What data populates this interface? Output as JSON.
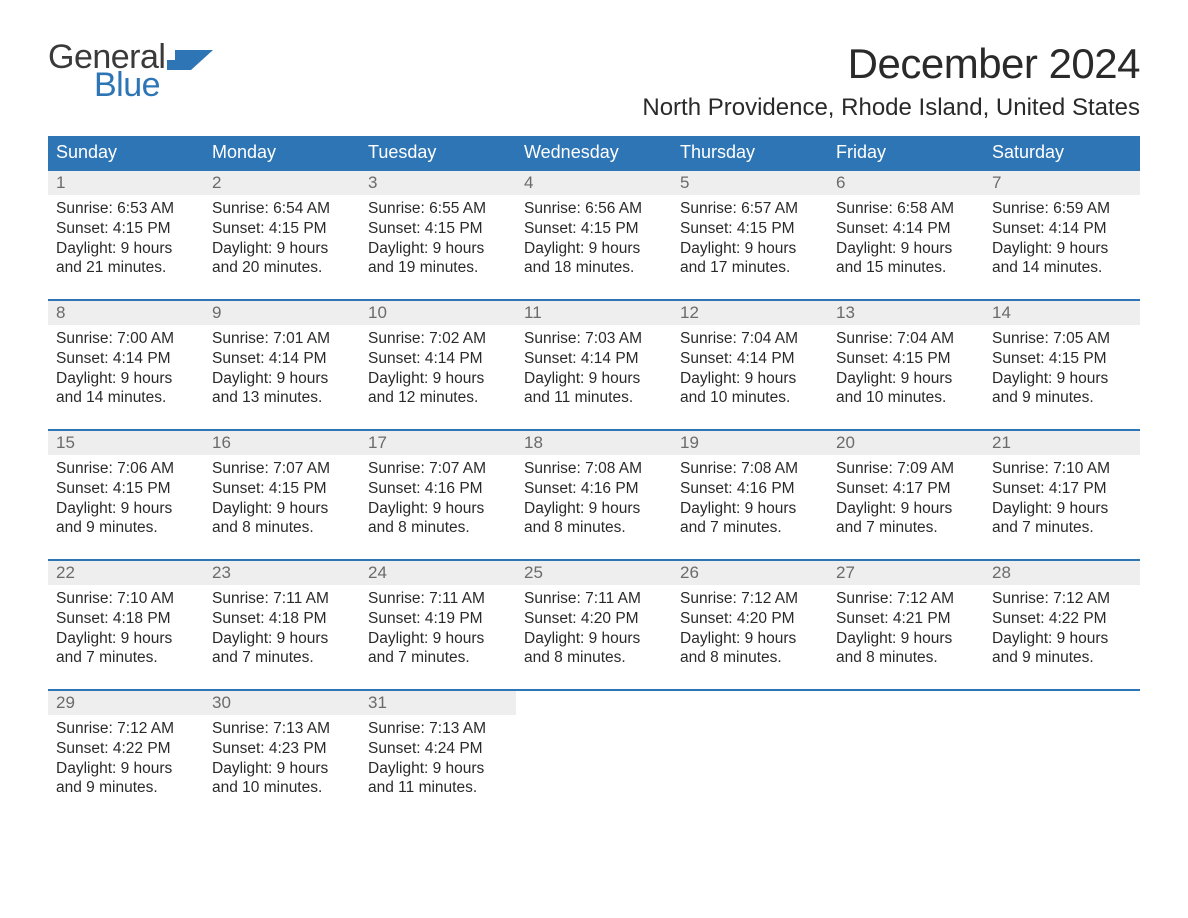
{
  "logo": {
    "text_top": "General",
    "text_bottom": "Blue",
    "top_color": "#3a3a3a",
    "bottom_color": "#2e75b6",
    "flag_color": "#2e75b6"
  },
  "title": "December 2024",
  "location": "North Providence, Rhode Island, United States",
  "colors": {
    "header_bg": "#2e75b6",
    "header_text": "#ffffff",
    "daynum_bg": "#eeeeee",
    "daynum_text": "#6b6b6b",
    "week_border": "#2e75b6",
    "body_text": "#2a2a2a",
    "page_bg": "#ffffff"
  },
  "weekdays": [
    "Sunday",
    "Monday",
    "Tuesday",
    "Wednesday",
    "Thursday",
    "Friday",
    "Saturday"
  ],
  "weeks": [
    [
      {
        "num": "1",
        "sunrise": "Sunrise: 6:53 AM",
        "sunset": "Sunset: 4:15 PM",
        "day1": "Daylight: 9 hours",
        "day2": "and 21 minutes."
      },
      {
        "num": "2",
        "sunrise": "Sunrise: 6:54 AM",
        "sunset": "Sunset: 4:15 PM",
        "day1": "Daylight: 9 hours",
        "day2": "and 20 minutes."
      },
      {
        "num": "3",
        "sunrise": "Sunrise: 6:55 AM",
        "sunset": "Sunset: 4:15 PM",
        "day1": "Daylight: 9 hours",
        "day2": "and 19 minutes."
      },
      {
        "num": "4",
        "sunrise": "Sunrise: 6:56 AM",
        "sunset": "Sunset: 4:15 PM",
        "day1": "Daylight: 9 hours",
        "day2": "and 18 minutes."
      },
      {
        "num": "5",
        "sunrise": "Sunrise: 6:57 AM",
        "sunset": "Sunset: 4:15 PM",
        "day1": "Daylight: 9 hours",
        "day2": "and 17 minutes."
      },
      {
        "num": "6",
        "sunrise": "Sunrise: 6:58 AM",
        "sunset": "Sunset: 4:14 PM",
        "day1": "Daylight: 9 hours",
        "day2": "and 15 minutes."
      },
      {
        "num": "7",
        "sunrise": "Sunrise: 6:59 AM",
        "sunset": "Sunset: 4:14 PM",
        "day1": "Daylight: 9 hours",
        "day2": "and 14 minutes."
      }
    ],
    [
      {
        "num": "8",
        "sunrise": "Sunrise: 7:00 AM",
        "sunset": "Sunset: 4:14 PM",
        "day1": "Daylight: 9 hours",
        "day2": "and 14 minutes."
      },
      {
        "num": "9",
        "sunrise": "Sunrise: 7:01 AM",
        "sunset": "Sunset: 4:14 PM",
        "day1": "Daylight: 9 hours",
        "day2": "and 13 minutes."
      },
      {
        "num": "10",
        "sunrise": "Sunrise: 7:02 AM",
        "sunset": "Sunset: 4:14 PM",
        "day1": "Daylight: 9 hours",
        "day2": "and 12 minutes."
      },
      {
        "num": "11",
        "sunrise": "Sunrise: 7:03 AM",
        "sunset": "Sunset: 4:14 PM",
        "day1": "Daylight: 9 hours",
        "day2": "and 11 minutes."
      },
      {
        "num": "12",
        "sunrise": "Sunrise: 7:04 AM",
        "sunset": "Sunset: 4:14 PM",
        "day1": "Daylight: 9 hours",
        "day2": "and 10 minutes."
      },
      {
        "num": "13",
        "sunrise": "Sunrise: 7:04 AM",
        "sunset": "Sunset: 4:15 PM",
        "day1": "Daylight: 9 hours",
        "day2": "and 10 minutes."
      },
      {
        "num": "14",
        "sunrise": "Sunrise: 7:05 AM",
        "sunset": "Sunset: 4:15 PM",
        "day1": "Daylight: 9 hours",
        "day2": "and 9 minutes."
      }
    ],
    [
      {
        "num": "15",
        "sunrise": "Sunrise: 7:06 AM",
        "sunset": "Sunset: 4:15 PM",
        "day1": "Daylight: 9 hours",
        "day2": "and 9 minutes."
      },
      {
        "num": "16",
        "sunrise": "Sunrise: 7:07 AM",
        "sunset": "Sunset: 4:15 PM",
        "day1": "Daylight: 9 hours",
        "day2": "and 8 minutes."
      },
      {
        "num": "17",
        "sunrise": "Sunrise: 7:07 AM",
        "sunset": "Sunset: 4:16 PM",
        "day1": "Daylight: 9 hours",
        "day2": "and 8 minutes."
      },
      {
        "num": "18",
        "sunrise": "Sunrise: 7:08 AM",
        "sunset": "Sunset: 4:16 PM",
        "day1": "Daylight: 9 hours",
        "day2": "and 8 minutes."
      },
      {
        "num": "19",
        "sunrise": "Sunrise: 7:08 AM",
        "sunset": "Sunset: 4:16 PM",
        "day1": "Daylight: 9 hours",
        "day2": "and 7 minutes."
      },
      {
        "num": "20",
        "sunrise": "Sunrise: 7:09 AM",
        "sunset": "Sunset: 4:17 PM",
        "day1": "Daylight: 9 hours",
        "day2": "and 7 minutes."
      },
      {
        "num": "21",
        "sunrise": "Sunrise: 7:10 AM",
        "sunset": "Sunset: 4:17 PM",
        "day1": "Daylight: 9 hours",
        "day2": "and 7 minutes."
      }
    ],
    [
      {
        "num": "22",
        "sunrise": "Sunrise: 7:10 AM",
        "sunset": "Sunset: 4:18 PM",
        "day1": "Daylight: 9 hours",
        "day2": "and 7 minutes."
      },
      {
        "num": "23",
        "sunrise": "Sunrise: 7:11 AM",
        "sunset": "Sunset: 4:18 PM",
        "day1": "Daylight: 9 hours",
        "day2": "and 7 minutes."
      },
      {
        "num": "24",
        "sunrise": "Sunrise: 7:11 AM",
        "sunset": "Sunset: 4:19 PM",
        "day1": "Daylight: 9 hours",
        "day2": "and 7 minutes."
      },
      {
        "num": "25",
        "sunrise": "Sunrise: 7:11 AM",
        "sunset": "Sunset: 4:20 PM",
        "day1": "Daylight: 9 hours",
        "day2": "and 8 minutes."
      },
      {
        "num": "26",
        "sunrise": "Sunrise: 7:12 AM",
        "sunset": "Sunset: 4:20 PM",
        "day1": "Daylight: 9 hours",
        "day2": "and 8 minutes."
      },
      {
        "num": "27",
        "sunrise": "Sunrise: 7:12 AM",
        "sunset": "Sunset: 4:21 PM",
        "day1": "Daylight: 9 hours",
        "day2": "and 8 minutes."
      },
      {
        "num": "28",
        "sunrise": "Sunrise: 7:12 AM",
        "sunset": "Sunset: 4:22 PM",
        "day1": "Daylight: 9 hours",
        "day2": "and 9 minutes."
      }
    ],
    [
      {
        "num": "29",
        "sunrise": "Sunrise: 7:12 AM",
        "sunset": "Sunset: 4:22 PM",
        "day1": "Daylight: 9 hours",
        "day2": "and 9 minutes."
      },
      {
        "num": "30",
        "sunrise": "Sunrise: 7:13 AM",
        "sunset": "Sunset: 4:23 PM",
        "day1": "Daylight: 9 hours",
        "day2": "and 10 minutes."
      },
      {
        "num": "31",
        "sunrise": "Sunrise: 7:13 AM",
        "sunset": "Sunset: 4:24 PM",
        "day1": "Daylight: 9 hours",
        "day2": "and 11 minutes."
      },
      null,
      null,
      null,
      null
    ]
  ]
}
